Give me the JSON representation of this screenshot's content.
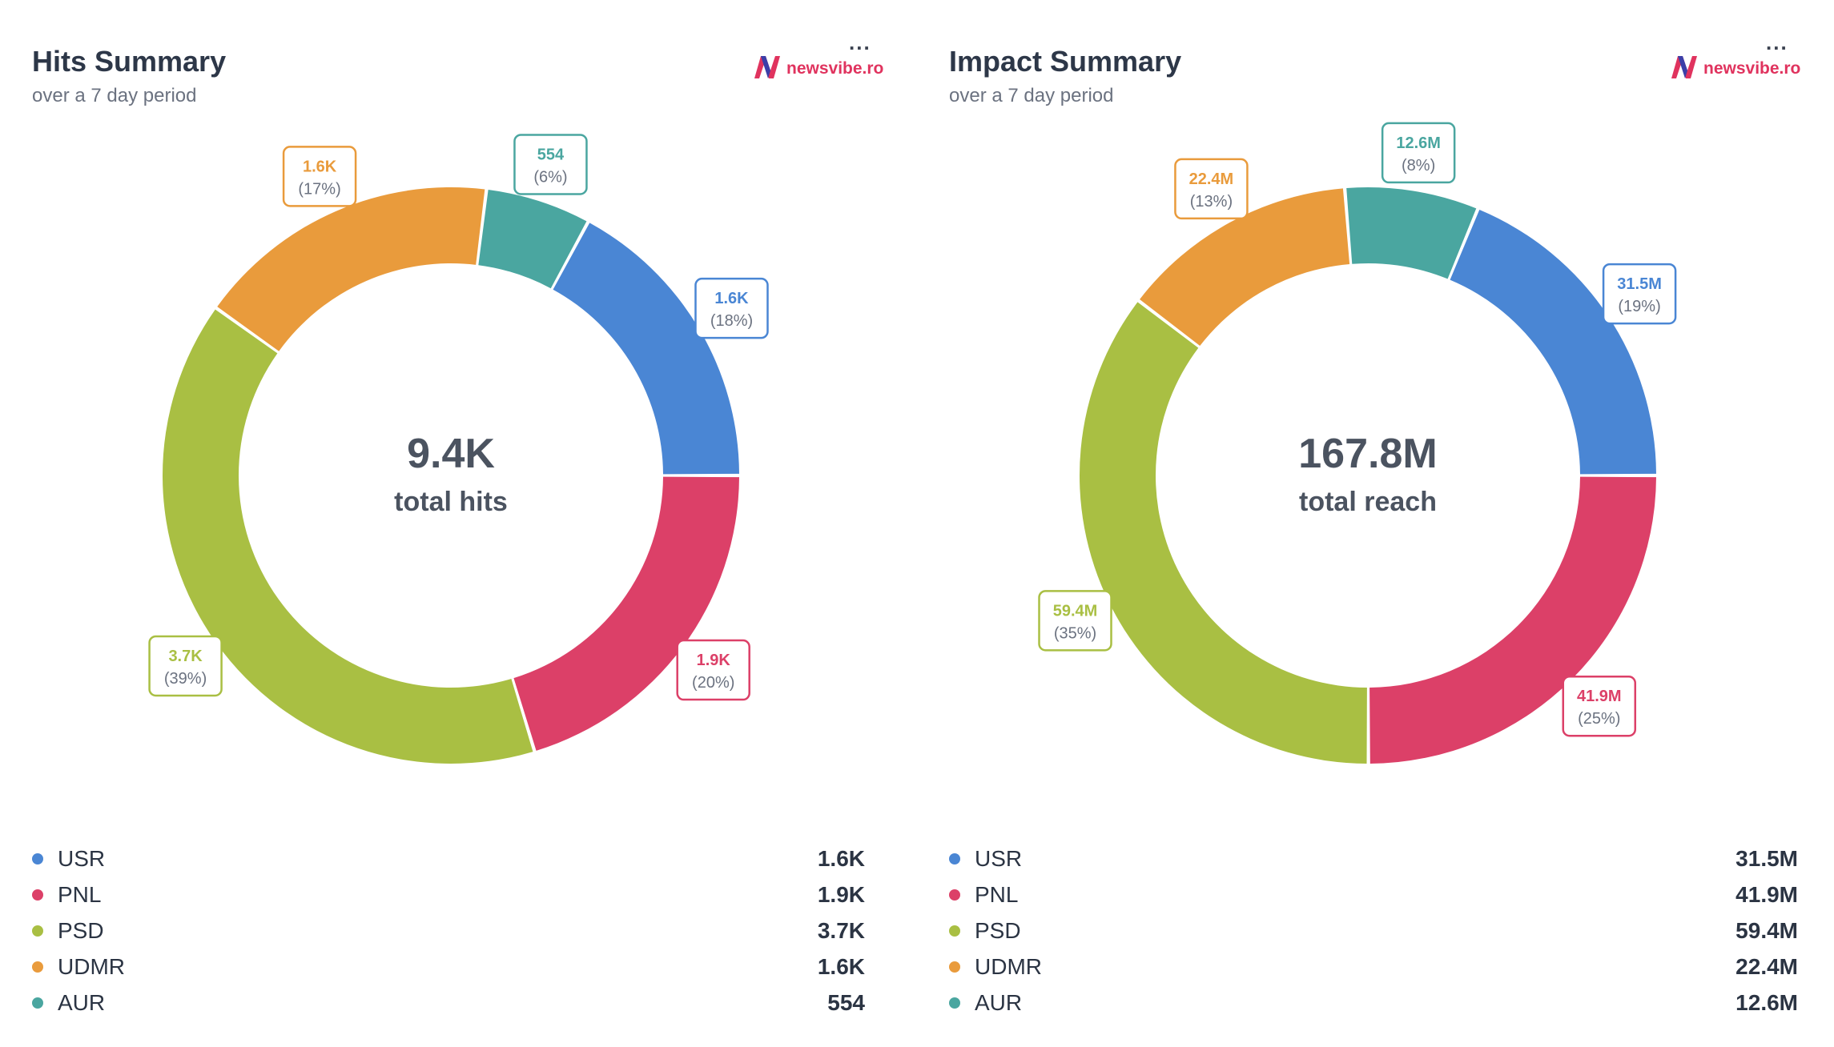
{
  "panels": [
    {
      "title": "Hits Summary",
      "subtitle": "over a 7 day period",
      "menu_label": "...",
      "brand": "newsvibe.ro",
      "center_value": "9.4K",
      "center_label": "total hits",
      "legend": [
        {
          "name": "USR",
          "value": "1.6K",
          "color": "#4a86d4"
        },
        {
          "name": "PNL",
          "value": "1.9K",
          "color": "#dc4068"
        },
        {
          "name": "PSD",
          "value": "3.7K",
          "color": "#a9bf43"
        },
        {
          "name": "UDMR",
          "value": "1.6K",
          "color": "#e99b3c"
        },
        {
          "name": "AUR",
          "value": "554",
          "color": "#4aa6a0"
        }
      ]
    },
    {
      "title": "Impact Summary",
      "subtitle": "over a 7 day period",
      "menu_label": "...",
      "brand": "newsvibe.ro",
      "center_value": "167.8M",
      "center_label": "total reach",
      "legend": [
        {
          "name": "USR",
          "value": "31.5M",
          "color": "#4a86d4"
        },
        {
          "name": "PNL",
          "value": "41.9M",
          "color": "#dc4068"
        },
        {
          "name": "PSD",
          "value": "59.4M",
          "color": "#a9bf43"
        },
        {
          "name": "UDMR",
          "value": "22.4M",
          "color": "#e99b3c"
        },
        {
          "name": "AUR",
          "value": "12.6M",
          "color": "#4aa6a0"
        }
      ]
    }
  ],
  "chart_data": [
    {
      "type": "pie",
      "title": "Hits Summary",
      "subtitle": "over a 7 day period",
      "center_text": [
        "9.4K",
        "total hits"
      ],
      "categories": [
        "USR",
        "AUR",
        "UDMR",
        "PSD",
        "PNL"
      ],
      "values": [
        1600,
        554,
        1600,
        3700,
        1900
      ],
      "labels": [
        "1.6K",
        "554",
        "1.6K",
        "3.7K",
        "1.9K"
      ],
      "percent_labels": [
        "(18%)",
        "(6%)",
        "(17%)",
        "(39%)",
        "(20%)"
      ],
      "colors": [
        "#4a86d4",
        "#4aa6a0",
        "#e99b3c",
        "#a9bf43",
        "#dc4068"
      ],
      "legend": "bottom"
    },
    {
      "type": "pie",
      "title": "Impact Summary",
      "subtitle": "over a 7 day period",
      "center_text": [
        "167.8M",
        "total reach"
      ],
      "categories": [
        "USR",
        "AUR",
        "UDMR",
        "PSD",
        "PNL"
      ],
      "values": [
        31.5,
        12.6,
        22.4,
        59.4,
        41.9
      ],
      "labels": [
        "31.5M",
        "12.6M",
        "22.4M",
        "59.4M",
        "41.9M"
      ],
      "percent_labels": [
        "(19%)",
        "(8%)",
        "(13%)",
        "(35%)",
        "(25%)"
      ],
      "colors": [
        "#4a86d4",
        "#4aa6a0",
        "#e99b3c",
        "#a9bf43",
        "#dc4068"
      ],
      "legend": "bottom"
    }
  ]
}
